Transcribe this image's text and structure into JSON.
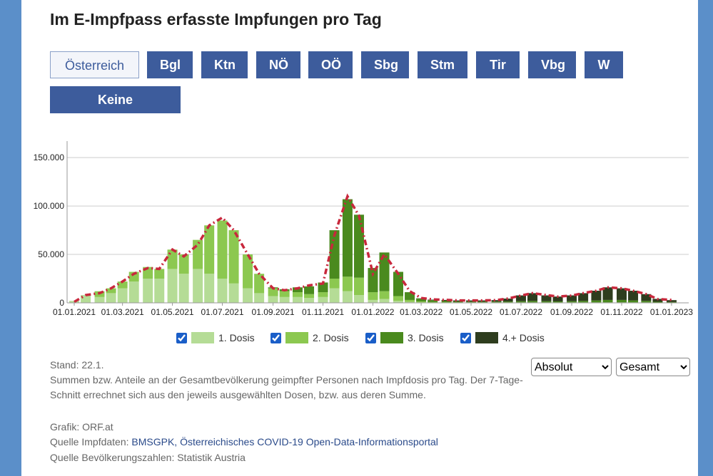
{
  "header": {
    "title": "Im E-Impfpass erfasste Impfungen pro Tag"
  },
  "buttons": [
    "Österreich",
    "Bgl",
    "Ktn",
    "NÖ",
    "OÖ",
    "Sbg",
    "Stm",
    "Tir",
    "Vbg",
    "W",
    "Keine Zuordnung"
  ],
  "selects": [
    "Absolut",
    "Gesamt"
  ],
  "footer": {
    "stand": "Stand: 22.1.",
    "description": "Summen bzw. Anteile an der Gesamtbevölkerung geimpfter Personen nach Impfdosis pro Tag. Der 7-Tage-Schnitt errechnet sich aus den jeweils ausgewählten Dosen, bzw. aus deren Summe.",
    "grafik": "Grafik: ORF.at",
    "source_label": "Quelle Impfdaten:",
    "source_link": "BMSGPK, Österreichisches COVID-19 Open-Data-Informationsportal",
    "population": "Quelle Bevölkerungszahlen: Statistik Austria"
  },
  "chart_data": {
    "type": "bar",
    "x": [
      "2021-01-01",
      "2021-01-15",
      "2021-02-01",
      "2021-02-15",
      "2021-03-01",
      "2021-03-15",
      "2021-04-01",
      "2021-04-15",
      "2021-05-01",
      "2021-05-15",
      "2021-06-01",
      "2021-06-15",
      "2021-07-01",
      "2021-07-15",
      "2021-08-01",
      "2021-08-15",
      "2021-09-01",
      "2021-09-15",
      "2021-10-01",
      "2021-10-15",
      "2021-11-01",
      "2021-11-15",
      "2021-12-01",
      "2021-12-15",
      "2022-01-01",
      "2022-01-15",
      "2022-02-01",
      "2022-02-15",
      "2022-03-01",
      "2022-03-15",
      "2022-04-01",
      "2022-04-15",
      "2022-05-01",
      "2022-05-15",
      "2022-06-01",
      "2022-06-15",
      "2022-07-01",
      "2022-07-15",
      "2022-08-01",
      "2022-08-15",
      "2022-09-01",
      "2022-09-15",
      "2022-10-01",
      "2022-10-15",
      "2022-11-01",
      "2022-11-15",
      "2022-12-01",
      "2022-12-15",
      "2023-01-01"
    ],
    "series": [
      {
        "name": "1. Dosis",
        "color": "#b5dc96",
        "values": [
          2000,
          8000,
          6000,
          10000,
          15000,
          22000,
          25000,
          25000,
          35000,
          30000,
          35000,
          30000,
          25000,
          20000,
          15000,
          10000,
          7000,
          6000,
          6000,
          5000,
          6000,
          15000,
          12000,
          8000,
          3000,
          4000,
          2000,
          1000,
          500,
          300,
          300,
          200,
          200,
          200,
          200,
          200,
          200,
          200,
          200,
          200,
          200,
          200,
          200,
          200,
          200,
          200,
          200,
          100,
          100
        ]
      },
      {
        "name": "2. Dosis",
        "color": "#8cc850",
        "values": [
          0,
          0,
          6000,
          5000,
          7000,
          10000,
          12000,
          10000,
          20000,
          20000,
          30000,
          50000,
          60000,
          55000,
          35000,
          20000,
          8000,
          6000,
          5000,
          4000,
          5000,
          10000,
          15000,
          18000,
          8000,
          8000,
          5000,
          2000,
          1000,
          500,
          400,
          300,
          300,
          300,
          300,
          300,
          300,
          300,
          300,
          300,
          300,
          300,
          300,
          300,
          300,
          300,
          300,
          200,
          200
        ]
      },
      {
        "name": "3. Dosis",
        "color": "#4a8a1e",
        "values": [
          0,
          0,
          0,
          0,
          0,
          0,
          0,
          0,
          0,
          0,
          0,
          0,
          0,
          0,
          0,
          0,
          1000,
          2000,
          5000,
          8000,
          10000,
          50000,
          80000,
          65000,
          25000,
          40000,
          25000,
          8000,
          3000,
          2000,
          1500,
          1000,
          800,
          700,
          800,
          900,
          1200,
          1500,
          1200,
          1000,
          1200,
          1500,
          2000,
          2500,
          2500,
          2000,
          1500,
          800,
          500
        ]
      },
      {
        "name": "4.+ Dosis",
        "color": "#2e3d1e",
        "values": [
          0,
          0,
          0,
          0,
          0,
          0,
          0,
          0,
          0,
          0,
          0,
          0,
          0,
          0,
          0,
          0,
          0,
          0,
          0,
          0,
          0,
          0,
          0,
          0,
          0,
          0,
          0,
          0,
          200,
          500,
          800,
          1000,
          1200,
          1300,
          1500,
          3000,
          6000,
          8000,
          6000,
          5000,
          6000,
          8000,
          10000,
          13000,
          12000,
          10000,
          7000,
          3000,
          2000
        ]
      }
    ],
    "line": {
      "color": "#c8283c",
      "values": [
        1000,
        8000,
        10000,
        15000,
        22000,
        30000,
        36000,
        35000,
        55000,
        48000,
        60000,
        80000,
        88000,
        75000,
        50000,
        30000,
        15000,
        13000,
        15000,
        18000,
        20000,
        70000,
        110000,
        90000,
        30000,
        50000,
        30000,
        12000,
        5000,
        3500,
        3000,
        2500,
        2500,
        2500,
        2800,
        4500,
        7500,
        10000,
        8000,
        6500,
        7500,
        10000,
        12500,
        16000,
        15000,
        12500,
        9000,
        4000,
        3000
      ]
    },
    "xlim": [
      "2021-01-01",
      "2023-01-22"
    ],
    "xticks": [
      {
        "value": "2021-01-01",
        "label": "01.01.2021"
      },
      {
        "value": "2021-03-01",
        "label": "01.03.2021"
      },
      {
        "value": "2021-05-01",
        "label": "01.05.2021"
      },
      {
        "value": "2021-07-01",
        "label": "01.07.2021"
      },
      {
        "value": "2021-09-01",
        "label": "01.09.2021"
      },
      {
        "value": "2021-11-01",
        "label": "01.11.2021"
      },
      {
        "value": "2022-01-01",
        "label": "01.01.2022"
      },
      {
        "value": "2022-03-01",
        "label": "01.03.2022"
      },
      {
        "value": "2022-05-01",
        "label": "01.05.2022"
      },
      {
        "value": "2022-07-01",
        "label": "01.07.2022"
      },
      {
        "value": "2022-09-01",
        "label": "01.09.2022"
      },
      {
        "value": "2022-11-01",
        "label": "01.11.2022"
      },
      {
        "value": "2023-01-01",
        "label": "01.01.2023"
      }
    ],
    "ylim": [
      0,
      167000
    ],
    "yticks": [
      0,
      {
        "value": 50000,
        "label": "50.000"
      },
      {
        "value": 100000,
        "label": "100.000"
      },
      {
        "value": 150000,
        "label": "150.000"
      }
    ],
    "grid": true
  }
}
